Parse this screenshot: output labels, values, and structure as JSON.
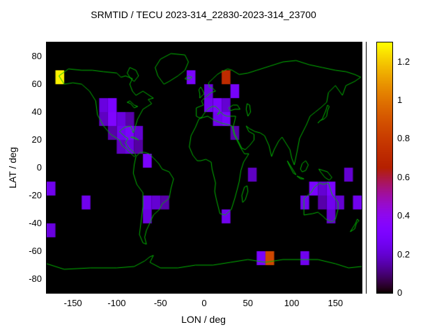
{
  "chart_data": {
    "type": "heatmap",
    "title": "SRMTID / TECU 2023-314_22830-2023-314_23700",
    "xlabel": "LON / deg",
    "ylabel": "LAT / deg",
    "xlim": [
      -180,
      180
    ],
    "ylim": [
      -90,
      90
    ],
    "xticks": [
      -150,
      -100,
      -50,
      0,
      50,
      100,
      150
    ],
    "yticks": [
      80,
      60,
      40,
      20,
      0,
      -20,
      -40,
      -60,
      -80
    ],
    "grid": false,
    "legend_position": "colorbar-right",
    "colorbar": {
      "min": 0,
      "max": 1.3,
      "ticks": [
        0,
        0.2,
        0.4,
        0.6,
        0.8,
        1,
        1.2
      ],
      "palette": "gnuplot-pm3d black-purple-blue-red-orange-yellow"
    },
    "bin_size_deg": 10,
    "cells": [
      [
        -170,
        60,
        1.28
      ],
      [
        -20,
        60,
        0.3
      ],
      [
        0,
        50,
        0.22
      ],
      [
        20,
        60,
        0.72
      ],
      [
        30,
        50,
        0.28
      ],
      [
        -120,
        40,
        0.22
      ],
      [
        -110,
        40,
        0.3
      ],
      [
        -120,
        30,
        0.18
      ],
      [
        -110,
        30,
        0.32
      ],
      [
        -100,
        30,
        0.22
      ],
      [
        -90,
        30,
        0.15
      ],
      [
        -110,
        20,
        0.15
      ],
      [
        -100,
        20,
        0.25
      ],
      [
        -90,
        20,
        0.3
      ],
      [
        -80,
        20,
        0.2
      ],
      [
        -100,
        10,
        0.18
      ],
      [
        -90,
        10,
        0.22
      ],
      [
        -80,
        10,
        0.14
      ],
      [
        -70,
        0,
        0.3
      ],
      [
        0,
        40,
        0.25
      ],
      [
        10,
        40,
        0.3
      ],
      [
        20,
        40,
        0.2
      ],
      [
        10,
        30,
        0.25
      ],
      [
        20,
        30,
        0.3
      ],
      [
        30,
        20,
        0.15
      ],
      [
        -180,
        -20,
        0.25
      ],
      [
        -140,
        -30,
        0.25
      ],
      [
        -70,
        -30,
        0.25
      ],
      [
        -60,
        -30,
        0.2
      ],
      [
        -70,
        -40,
        0.22
      ],
      [
        -50,
        -30,
        0.15
      ],
      [
        20,
        -40,
        0.25
      ],
      [
        50,
        -10,
        0.18
      ],
      [
        -180,
        -50,
        0.22
      ],
      [
        60,
        -70,
        0.3
      ],
      [
        70,
        -70,
        0.85
      ],
      [
        110,
        -70,
        0.25
      ],
      [
        110,
        -30,
        0.25
      ],
      [
        120,
        -20,
        0.3
      ],
      [
        130,
        -20,
        0.2
      ],
      [
        140,
        -20,
        0.3
      ],
      [
        140,
        -30,
        0.25
      ],
      [
        150,
        -30,
        0.2
      ],
      [
        130,
        -30,
        0.15
      ],
      [
        160,
        -10,
        0.2
      ],
      [
        170,
        -30,
        0.25
      ],
      [
        140,
        -40,
        0.2
      ]
    ],
    "coastlines": [
      [
        [
          -166,
          66
        ],
        [
          -160,
          60
        ],
        [
          -150,
          61
        ],
        [
          -140,
          60
        ],
        [
          -131,
          55
        ],
        [
          -124,
          48
        ],
        [
          -122,
          38
        ],
        [
          -115,
          30
        ],
        [
          -107,
          24
        ],
        [
          -97,
          20
        ],
        [
          -94,
          16
        ],
        [
          -90,
          14
        ],
        [
          -85,
          11
        ],
        [
          -80,
          8
        ],
        [
          -78,
          9
        ],
        [
          -82,
          12
        ],
        [
          -86,
          14
        ],
        [
          -90,
          18
        ],
        [
          -87,
          21
        ],
        [
          -90,
          22
        ],
        [
          -97,
          26
        ],
        [
          -91,
          29
        ],
        [
          -84,
          30
        ],
        [
          -81,
          25
        ],
        [
          -80,
          27
        ],
        [
          -76,
          35
        ],
        [
          -70,
          42
        ],
        [
          -65,
          44
        ],
        [
          -60,
          46
        ],
        [
          -64,
          49
        ],
        [
          -58,
          50
        ],
        [
          -70,
          55
        ],
        [
          -78,
          52
        ],
        [
          -82,
          55
        ],
        [
          -85,
          60
        ],
        [
          -82,
          64
        ],
        [
          -90,
          66
        ],
        [
          -95,
          65
        ],
        [
          -100,
          68
        ],
        [
          -115,
          69
        ],
        [
          -128,
          70
        ],
        [
          -140,
          70
        ],
        [
          -155,
          71
        ],
        [
          -166,
          66
        ]
      ],
      [
        [
          -46,
          60
        ],
        [
          -53,
          66
        ],
        [
          -56,
          72
        ],
        [
          -50,
          78
        ],
        [
          -38,
          82
        ],
        [
          -22,
          81
        ],
        [
          -18,
          76
        ],
        [
          -22,
          70
        ],
        [
          -30,
          66
        ],
        [
          -40,
          62
        ],
        [
          -46,
          60
        ]
      ],
      [
        [
          -80,
          62
        ],
        [
          -75,
          66
        ],
        [
          -78,
          70
        ],
        [
          -85,
          72
        ],
        [
          -88,
          68
        ],
        [
          -84,
          64
        ],
        [
          -80,
          62
        ]
      ],
      [
        [
          -84,
          22
        ],
        [
          -80,
          22
        ],
        [
          -75,
          20
        ],
        [
          -80,
          21
        ],
        [
          -84,
          22
        ]
      ],
      [
        [
          -88,
          47
        ],
        [
          -84,
          46
        ],
        [
          -80,
          43
        ],
        [
          -76,
          44
        ],
        [
          -80,
          45
        ],
        [
          -85,
          48
        ],
        [
          -88,
          47
        ]
      ],
      [
        [
          -78,
          8
        ],
        [
          -80,
          2
        ],
        [
          -81,
          -4
        ],
        [
          -77,
          -12
        ],
        [
          -70,
          -18
        ],
        [
          -70,
          -28
        ],
        [
          -72,
          -38
        ],
        [
          -74,
          -48
        ],
        [
          -70,
          -54
        ],
        [
          -66,
          -55
        ],
        [
          -68,
          -50
        ],
        [
          -66,
          -45
        ],
        [
          -63,
          -41
        ],
        [
          -58,
          -34
        ],
        [
          -51,
          -30
        ],
        [
          -48,
          -26
        ],
        [
          -40,
          -22
        ],
        [
          -38,
          -15
        ],
        [
          -35,
          -8
        ],
        [
          -40,
          -3
        ],
        [
          -48,
          -1
        ],
        [
          -52,
          3
        ],
        [
          -58,
          7
        ],
        [
          -63,
          10
        ],
        [
          -68,
          11
        ],
        [
          -73,
          11
        ],
        [
          -78,
          8
        ]
      ],
      [
        [
          -6,
          35
        ],
        [
          -10,
          29
        ],
        [
          -15,
          23
        ],
        [
          -17,
          15
        ],
        [
          -13,
          9
        ],
        [
          -8,
          5
        ],
        [
          -4,
          5
        ],
        [
          2,
          6
        ],
        [
          8,
          4
        ],
        [
          9,
          -1
        ],
        [
          13,
          -11
        ],
        [
          12,
          -17
        ],
        [
          14,
          -23
        ],
        [
          18,
          -33
        ],
        [
          24,
          -34
        ],
        [
          31,
          -30
        ],
        [
          35,
          -22
        ],
        [
          38,
          -15
        ],
        [
          40,
          -10
        ],
        [
          42,
          -2
        ],
        [
          45,
          4
        ],
        [
          51,
          10
        ],
        [
          46,
          10
        ],
        [
          42,
          14
        ],
        [
          38,
          19
        ],
        [
          34,
          24
        ],
        [
          32,
          30
        ],
        [
          27,
          31
        ],
        [
          20,
          32
        ],
        [
          12,
          34
        ],
        [
          4,
          37
        ],
        [
          -2,
          36
        ],
        [
          -6,
          35
        ]
      ],
      [
        [
          -9,
          37
        ],
        [
          -9,
          43
        ],
        [
          -1,
          45
        ],
        [
          -3,
          48
        ],
        [
          2,
          51
        ],
        [
          8,
          54
        ],
        [
          13,
          55
        ],
        [
          10,
          57
        ],
        [
          6,
          58
        ],
        [
          5,
          61
        ],
        [
          10,
          64
        ],
        [
          15,
          67
        ],
        [
          20,
          69
        ],
        [
          27,
          71
        ],
        [
          32,
          70
        ],
        [
          40,
          67
        ],
        [
          50,
          68
        ],
        [
          60,
          70
        ],
        [
          75,
          73
        ],
        [
          90,
          76
        ],
        [
          105,
          77
        ],
        [
          120,
          74
        ],
        [
          135,
          72
        ],
        [
          150,
          70
        ],
        [
          162,
          69
        ],
        [
          172,
          67
        ],
        [
          179,
          65
        ],
        [
          172,
          62
        ],
        [
          162,
          59
        ],
        [
          158,
          52
        ],
        [
          150,
          59
        ],
        [
          142,
          54
        ],
        [
          140,
          47
        ],
        [
          133,
          43
        ],
        [
          127,
          40
        ],
        [
          121,
          37
        ],
        [
          117,
          31
        ],
        [
          109,
          21
        ],
        [
          106,
          11
        ],
        [
          103,
          2
        ],
        [
          100,
          7
        ],
        [
          98,
          13
        ],
        [
          94,
          17
        ],
        [
          89,
          22
        ],
        [
          85,
          19
        ],
        [
          80,
          13
        ],
        [
          77,
          8
        ],
        [
          74,
          16
        ],
        [
          69,
          23
        ],
        [
          64,
          25
        ],
        [
          58,
          26
        ],
        [
          52,
          28
        ],
        [
          48,
          30
        ],
        [
          51,
          26
        ],
        [
          57,
          24
        ],
        [
          57,
          20
        ],
        [
          52,
          16
        ],
        [
          47,
          13
        ],
        [
          43,
          14
        ],
        [
          39,
          19
        ],
        [
          35,
          24
        ],
        [
          33,
          29
        ],
        [
          35,
          34
        ],
        [
          36,
          37
        ],
        [
          31,
          37
        ],
        [
          26,
          37
        ],
        [
          22,
          38
        ],
        [
          19,
          40
        ],
        [
          15,
          38
        ],
        [
          18,
          41
        ],
        [
          13,
          44
        ],
        [
          9,
          44
        ],
        [
          4,
          42
        ],
        [
          0,
          39
        ],
        [
          -3,
          36
        ],
        [
          -6,
          36
        ],
        [
          -9,
          37
        ]
      ],
      [
        [
          -5,
          50
        ],
        [
          -2,
          52
        ],
        [
          0,
          53
        ],
        [
          -2,
          56
        ],
        [
          -4,
          58
        ],
        [
          -6,
          56
        ],
        [
          -5,
          53
        ],
        [
          -5,
          50
        ]
      ],
      [
        [
          -22,
          64
        ],
        [
          -18,
          66
        ],
        [
          -14,
          65
        ],
        [
          -17,
          63
        ],
        [
          -22,
          64
        ]
      ],
      [
        [
          28,
          43
        ],
        [
          33,
          45
        ],
        [
          38,
          45
        ],
        [
          41,
          42
        ],
        [
          35,
          42
        ],
        [
          30,
          41
        ],
        [
          28,
          43
        ]
      ],
      [
        [
          50,
          37
        ],
        [
          53,
          40
        ],
        [
          52,
          45
        ],
        [
          49,
          46
        ],
        [
          48,
          42
        ],
        [
          50,
          37
        ]
      ],
      [
        [
          130,
          32
        ],
        [
          133,
          34
        ],
        [
          137,
          35
        ],
        [
          140,
          37
        ],
        [
          141,
          41
        ],
        [
          143,
          44
        ],
        [
          141,
          45
        ],
        [
          139,
          41
        ],
        [
          135,
          35
        ],
        [
          131,
          33
        ],
        [
          130,
          32
        ]
      ],
      [
        [
          44,
          -25
        ],
        [
          43,
          -20
        ],
        [
          46,
          -14
        ],
        [
          49,
          -13
        ],
        [
          50,
          -17
        ],
        [
          47,
          -23
        ],
        [
          44,
          -25
        ]
      ],
      [
        [
          95,
          5
        ],
        [
          99,
          1
        ],
        [
          103,
          -3
        ],
        [
          105,
          -5
        ],
        [
          102,
          -4
        ],
        [
          97,
          2
        ],
        [
          95,
          5
        ]
      ],
      [
        [
          110,
          -1
        ],
        [
          112,
          3
        ],
        [
          116,
          5
        ],
        [
          119,
          2
        ],
        [
          116,
          -2
        ],
        [
          112,
          -3
        ],
        [
          110,
          -1
        ]
      ],
      [
        [
          106,
          -6
        ],
        [
          110,
          -7
        ],
        [
          114,
          -8
        ],
        [
          110,
          -8
        ],
        [
          106,
          -6
        ]
      ],
      [
        [
          131,
          -1
        ],
        [
          136,
          -2
        ],
        [
          141,
          -3
        ],
        [
          146,
          -7
        ],
        [
          143,
          -9
        ],
        [
          138,
          -7
        ],
        [
          133,
          -3
        ],
        [
          131,
          -1
        ]
      ],
      [
        [
          114,
          -22
        ],
        [
          114,
          -34
        ],
        [
          124,
          -33
        ],
        [
          130,
          -32
        ],
        [
          136,
          -35
        ],
        [
          139,
          -37
        ],
        [
          146,
          -39
        ],
        [
          150,
          -37
        ],
        [
          153,
          -30
        ],
        [
          153,
          -25
        ],
        [
          146,
          -19
        ],
        [
          142,
          -11
        ],
        [
          136,
          -12
        ],
        [
          132,
          -11
        ],
        [
          126,
          -14
        ],
        [
          122,
          -18
        ],
        [
          114,
          -22
        ]
      ],
      [
        [
          167,
          -46
        ],
        [
          170,
          -43
        ],
        [
          172,
          -41
        ],
        [
          173,
          -40
        ],
        [
          175,
          -37
        ],
        [
          177,
          -38
        ],
        [
          174,
          -40
        ],
        [
          172,
          -44
        ],
        [
          167,
          -46
        ]
      ],
      [
        [
          -180,
          -69
        ],
        [
          -160,
          -73
        ],
        [
          -130,
          -72
        ],
        [
          -100,
          -72
        ],
        [
          -80,
          -71
        ],
        [
          -68,
          -67
        ],
        [
          -62,
          -64
        ],
        [
          -58,
          -63
        ],
        [
          -62,
          -68
        ],
        [
          -50,
          -72
        ],
        [
          -30,
          -72
        ],
        [
          -10,
          -70
        ],
        [
          10,
          -70
        ],
        [
          30,
          -68
        ],
        [
          50,
          -66
        ],
        [
          70,
          -68
        ],
        [
          90,
          -66
        ],
        [
          110,
          -66
        ],
        [
          130,
          -66
        ],
        [
          150,
          -69
        ],
        [
          165,
          -72
        ],
        [
          180,
          -71
        ]
      ]
    ],
    "colors": {
      "plot_bg": "#000000",
      "coastline": "#00b800",
      "page_bg": "#ffffff",
      "text": "#000000"
    }
  }
}
